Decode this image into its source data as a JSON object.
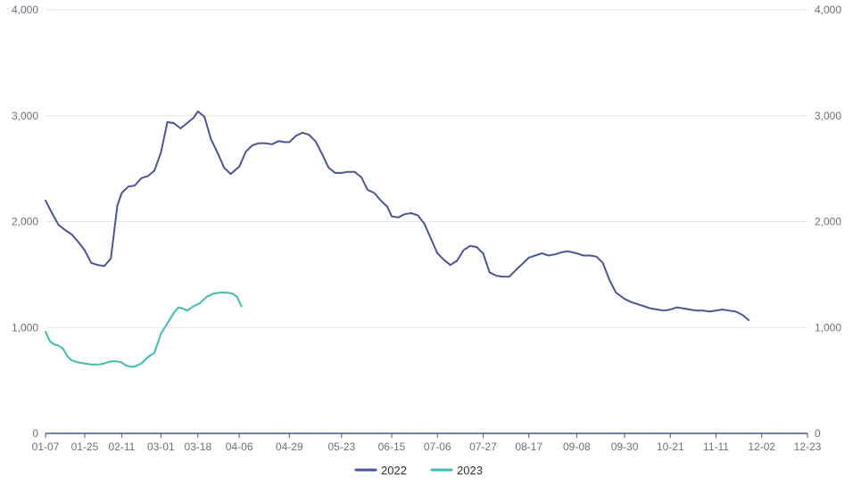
{
  "chart_data": {
    "type": "line",
    "title": "",
    "xlabel": "",
    "ylabel": "",
    "ylim": [
      0,
      4000
    ],
    "y_ticks": [
      "0",
      "1,000",
      "2,000",
      "3,000",
      "4,000"
    ],
    "y_tick_values": [
      0,
      1000,
      2000,
      3000,
      4000
    ],
    "right_axis_mirrored": true,
    "grid": "horizontal",
    "legend_position": "bottom-center",
    "categories": [
      "01-07",
      "01-25",
      "02-11",
      "03-01",
      "03-18",
      "04-06",
      "04-29",
      "05-23",
      "06-15",
      "07-06",
      "07-27",
      "08-17",
      "09-08",
      "09-30",
      "10-21",
      "11-11",
      "12-02",
      "12-23"
    ],
    "series": [
      {
        "name": "2022",
        "color": "#4b5593",
        "points": [
          [
            "01-07",
            2200
          ],
          [
            "01-10",
            2080
          ],
          [
            "01-13",
            1970
          ],
          [
            "01-16",
            1920
          ],
          [
            "01-19",
            1880
          ],
          [
            "01-22",
            1810
          ],
          [
            "01-25",
            1730
          ],
          [
            "01-28",
            1610
          ],
          [
            "01-31",
            1590
          ],
          [
            "02-03",
            1580
          ],
          [
            "02-06",
            1650
          ],
          [
            "02-09",
            2150
          ],
          [
            "02-11",
            2270
          ],
          [
            "02-14",
            2330
          ],
          [
            "02-17",
            2340
          ],
          [
            "02-20",
            2410
          ],
          [
            "02-23",
            2430
          ],
          [
            "02-26",
            2480
          ],
          [
            "03-01",
            2650
          ],
          [
            "03-04",
            2940
          ],
          [
            "03-07",
            2930
          ],
          [
            "03-10",
            2880
          ],
          [
            "03-13",
            2930
          ],
          [
            "03-16",
            2980
          ],
          [
            "03-18",
            3040
          ],
          [
            "03-21",
            2990
          ],
          [
            "03-24",
            2780
          ],
          [
            "03-27",
            2650
          ],
          [
            "03-30",
            2510
          ],
          [
            "04-02",
            2450
          ],
          [
            "04-06",
            2520
          ],
          [
            "04-09",
            2660
          ],
          [
            "04-12",
            2720
          ],
          [
            "04-15",
            2740
          ],
          [
            "04-18",
            2740
          ],
          [
            "04-21",
            2730
          ],
          [
            "04-24",
            2760
          ],
          [
            "04-27",
            2750
          ],
          [
            "04-29",
            2750
          ],
          [
            "05-02",
            2810
          ],
          [
            "05-05",
            2840
          ],
          [
            "05-08",
            2820
          ],
          [
            "05-11",
            2760
          ],
          [
            "05-14",
            2640
          ],
          [
            "05-17",
            2510
          ],
          [
            "05-20",
            2460
          ],
          [
            "05-23",
            2460
          ],
          [
            "05-26",
            2470
          ],
          [
            "05-29",
            2470
          ],
          [
            "06-01",
            2420
          ],
          [
            "06-04",
            2300
          ],
          [
            "06-07",
            2270
          ],
          [
            "06-10",
            2200
          ],
          [
            "06-13",
            2140
          ],
          [
            "06-15",
            2050
          ],
          [
            "06-18",
            2040
          ],
          [
            "06-21",
            2070
          ],
          [
            "06-24",
            2080
          ],
          [
            "06-27",
            2060
          ],
          [
            "06-30",
            1980
          ],
          [
            "07-03",
            1840
          ],
          [
            "07-06",
            1700
          ],
          [
            "07-09",
            1640
          ],
          [
            "07-12",
            1590
          ],
          [
            "07-15",
            1630
          ],
          [
            "07-18",
            1730
          ],
          [
            "07-21",
            1770
          ],
          [
            "07-24",
            1760
          ],
          [
            "07-27",
            1700
          ],
          [
            "07-30",
            1520
          ],
          [
            "08-02",
            1490
          ],
          [
            "08-05",
            1480
          ],
          [
            "08-08",
            1480
          ],
          [
            "08-11",
            1540
          ],
          [
            "08-14",
            1600
          ],
          [
            "08-17",
            1660
          ],
          [
            "08-20",
            1680
          ],
          [
            "08-23",
            1700
          ],
          [
            "08-26",
            1680
          ],
          [
            "08-29",
            1690
          ],
          [
            "09-01",
            1710
          ],
          [
            "09-04",
            1720
          ],
          [
            "09-08",
            1700
          ],
          [
            "09-11",
            1680
          ],
          [
            "09-14",
            1680
          ],
          [
            "09-17",
            1670
          ],
          [
            "09-20",
            1610
          ],
          [
            "09-23",
            1450
          ],
          [
            "09-26",
            1330
          ],
          [
            "09-30",
            1270
          ],
          [
            "10-03",
            1240
          ],
          [
            "10-06",
            1220
          ],
          [
            "10-09",
            1200
          ],
          [
            "10-12",
            1180
          ],
          [
            "10-15",
            1170
          ],
          [
            "10-18",
            1160
          ],
          [
            "10-21",
            1170
          ],
          [
            "10-24",
            1190
          ],
          [
            "10-27",
            1180
          ],
          [
            "10-30",
            1170
          ],
          [
            "11-02",
            1160
          ],
          [
            "11-05",
            1160
          ],
          [
            "11-08",
            1150
          ],
          [
            "11-11",
            1160
          ],
          [
            "11-14",
            1170
          ],
          [
            "11-17",
            1160
          ],
          [
            "11-20",
            1150
          ],
          [
            "11-23",
            1120
          ],
          [
            "11-26",
            1070
          ]
        ]
      },
      {
        "name": "2023",
        "color": "#3ebdb0",
        "points": [
          [
            "01-07",
            960
          ],
          [
            "01-09",
            870
          ],
          [
            "01-11",
            840
          ],
          [
            "01-13",
            830
          ],
          [
            "01-15",
            800
          ],
          [
            "01-17",
            730
          ],
          [
            "01-19",
            690
          ],
          [
            "01-22",
            670
          ],
          [
            "01-25",
            660
          ],
          [
            "01-28",
            650
          ],
          [
            "01-31",
            650
          ],
          [
            "02-03",
            660
          ],
          [
            "02-06",
            680
          ],
          [
            "02-09",
            680
          ],
          [
            "02-11",
            670
          ],
          [
            "02-13",
            640
          ],
          [
            "02-15",
            630
          ],
          [
            "02-17",
            630
          ],
          [
            "02-20",
            660
          ],
          [
            "02-23",
            720
          ],
          [
            "02-26",
            760
          ],
          [
            "03-01",
            940
          ],
          [
            "03-04",
            1040
          ],
          [
            "03-07",
            1140
          ],
          [
            "03-09",
            1190
          ],
          [
            "03-11",
            1180
          ],
          [
            "03-13",
            1160
          ],
          [
            "03-16",
            1200
          ],
          [
            "03-19",
            1230
          ],
          [
            "03-22",
            1290
          ],
          [
            "03-25",
            1320
          ],
          [
            "03-28",
            1330
          ],
          [
            "03-31",
            1330
          ],
          [
            "04-03",
            1320
          ],
          [
            "04-05",
            1290
          ],
          [
            "04-07",
            1200
          ]
        ]
      }
    ]
  }
}
